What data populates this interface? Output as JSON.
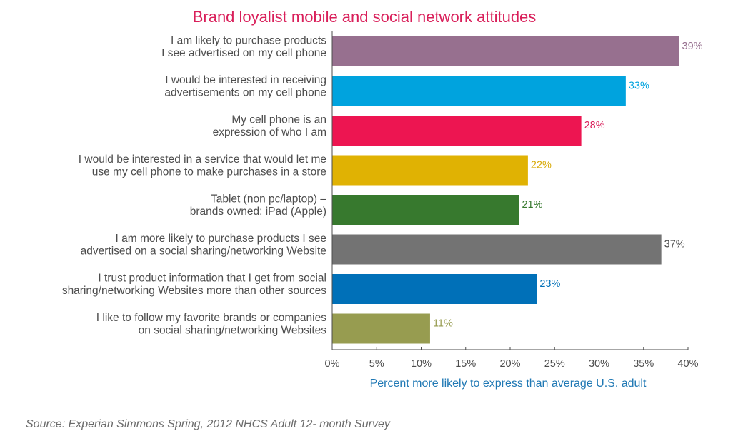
{
  "chart_data": {
    "type": "bar",
    "orientation": "horizontal",
    "title": "Brand loyalist mobile and social network attitudes",
    "xlabel": "Percent more likely to express than average U.S. adult",
    "ylabel": "",
    "xlim": [
      0,
      40
    ],
    "ticks": [
      "0%",
      "5%",
      "10%",
      "15%",
      "20%",
      "25%",
      "30%",
      "35%",
      "40%"
    ],
    "grid": false,
    "legend": "none",
    "categories": [
      [
        "I am likely to purchase products",
        "I see advertised on my cell phone"
      ],
      [
        "I would be interested in receiving",
        "advertisements on my cell phone"
      ],
      [
        "My cell  phone is an",
        "expression of who I am"
      ],
      [
        "I would be interested in a service that would let me",
        "use my cell phone to make purchases in a store"
      ],
      [
        "Tablet (non pc/laptop) –",
        "brands owned: iPad (Apple)"
      ],
      [
        "I am more likely to purchase products I see",
        "advertised on a social sharing/networking Website"
      ],
      [
        "I trust product information that I get from social",
        "sharing/networking Websites more than other sources"
      ],
      [
        "I like to follow my favorite brands or companies",
        "on social sharing/networking Websites"
      ]
    ],
    "values": [
      39,
      33,
      28,
      22,
      21,
      37,
      23,
      11
    ],
    "value_labels": [
      "39%",
      "33%",
      "28%",
      "22%",
      "21%",
      "37%",
      "23%",
      "11%"
    ],
    "colors": [
      "#97708f",
      "#00a3de",
      "#ed1551",
      "#e0b203",
      "#37792e",
      "#737373",
      "#0070b8",
      "#979c50"
    ],
    "value_label_colors": [
      "#97708f",
      "#00a3de",
      "#d91f5a",
      "#d9ab0a",
      "#37792e",
      "#4d4d4d",
      "#0070b8",
      "#979c50"
    ]
  },
  "source": "Source: Experian Simmons Spring, 2012 NHCS Adult 12- month Survey"
}
